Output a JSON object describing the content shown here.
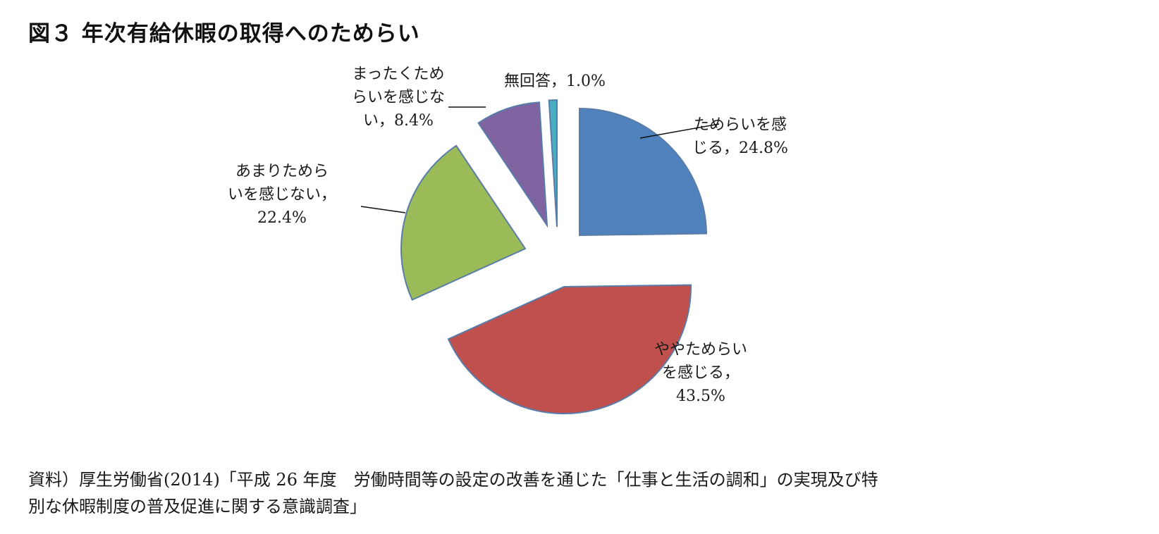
{
  "title": "図３ 年次有給休暇の取得へのためらい",
  "source": {
    "line1": "資料）厚生労働省(2014)「平成 26 年度　労働時間等の設定の改善を通じた「仕事と生活の調和」の実現及び特",
    "line2": "別な休暇制度の普及促進に関する意識調査」"
  },
  "chart_data": {
    "type": "pie",
    "title": "図３ 年次有給休暇の取得へのためらい",
    "start_angle": "12 o'clock, clockwise",
    "exploded": true,
    "categories": [
      "ためらいを感じる",
      "ややためらいを感じる",
      "あまりためらいを感じない",
      "まったくためらいを感じない",
      "無回答"
    ],
    "values": [
      24.8,
      43.5,
      22.4,
      8.4,
      1.0
    ],
    "unit": "%",
    "colors": [
      "#4f81bd",
      "#c0504d",
      "#9bbb59",
      "#8064a2",
      "#4bacc6"
    ],
    "slices": [
      {
        "label": "ためらいを感じる",
        "value": 24.8,
        "color": "#4f81bd",
        "label_lines": [
          "ためらいを感",
          "じる，24.8%"
        ]
      },
      {
        "label": "ややためらいを感じる",
        "value": 43.5,
        "color": "#c0504d",
        "label_lines": [
          "ややためらい",
          "を感じる，",
          "43.5%"
        ]
      },
      {
        "label": "あまりためらいを感じない",
        "value": 22.4,
        "color": "#9bbb59",
        "label_lines": [
          "あまりためら",
          "いを感じない，",
          "22.4%"
        ]
      },
      {
        "label": "まったくためらいを感じない",
        "value": 8.4,
        "color": "#8064a2",
        "label_lines": [
          "まったくため",
          "らいを感じな",
          "い，8.4%"
        ]
      },
      {
        "label": "無回答",
        "value": 1.0,
        "color": "#4bacc6",
        "label_lines": [
          "無回答，1.0%"
        ]
      }
    ]
  }
}
